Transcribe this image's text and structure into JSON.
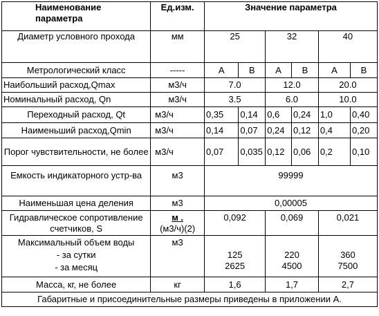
{
  "header": {
    "param": "Наименование параметра",
    "unit": "Ед.изм.",
    "value": "Значение параметра"
  },
  "diameter": {
    "label": "Диаметр условного прохода",
    "unit": "мм",
    "values": [
      "25",
      "32",
      "40"
    ]
  },
  "metro": {
    "label": "Метрологический класс",
    "unit": "-----",
    "classes": [
      "A",
      "B",
      "A",
      "B",
      "A",
      "B"
    ]
  },
  "qmax": {
    "label": "Наибольший расход,Qmax",
    "unit": "м3/ч",
    "values": [
      "7.0",
      "12.0",
      "20.0"
    ]
  },
  "qn": {
    "label": "Номинальный расход, Qn",
    "unit": "м3/ч",
    "values": [
      "3.5",
      "6.0",
      "10.0"
    ]
  },
  "qt": {
    "label": "Переходный расход, Qt",
    "unit": "м3/ч",
    "values": [
      "0,35",
      "0,14",
      "0,6",
      "0,24",
      "1,0",
      "0,40"
    ]
  },
  "qmin": {
    "label": "Наименьший расход,Qmin",
    "unit": "м3/ч",
    "values": [
      "0,14",
      "0,07",
      "0,24",
      "0,12",
      "0,4",
      "0,20"
    ]
  },
  "sens": {
    "label": "Порог чувствительности, не более",
    "unit": "м3/ч",
    "values": [
      "0,07",
      "0,035",
      "0,12",
      "0,06",
      "0,2",
      "0,10"
    ]
  },
  "capacity": {
    "label": "Емкость индикаторного устр-ва",
    "unit": "м3",
    "value": "99999"
  },
  "division": {
    "label": "Наименьшая цена деления",
    "unit": "м3",
    "value": "0,00005"
  },
  "hydro": {
    "label": "Гидравлическое сопротивление счетчиков, S",
    "unit_top": "м .",
    "unit_bottom": "(м3/ч)(2)",
    "values": [
      "0,092",
      "0,069",
      "0,021"
    ]
  },
  "maxvol": {
    "label": "Максимальный объем воды",
    "day_label": "- за сутки",
    "month_label": "- за месяц",
    "unit": "м3",
    "day_values": [
      "125",
      "220",
      "360"
    ],
    "month_values": [
      "2625",
      "4500",
      "7500"
    ]
  },
  "mass": {
    "label": "Масса, кг, не более",
    "unit": "кг",
    "values": [
      "1,6",
      "1,7",
      "2,7"
    ]
  },
  "footnote": "Габаритные и присоединительные размеры приведены в приложении А."
}
